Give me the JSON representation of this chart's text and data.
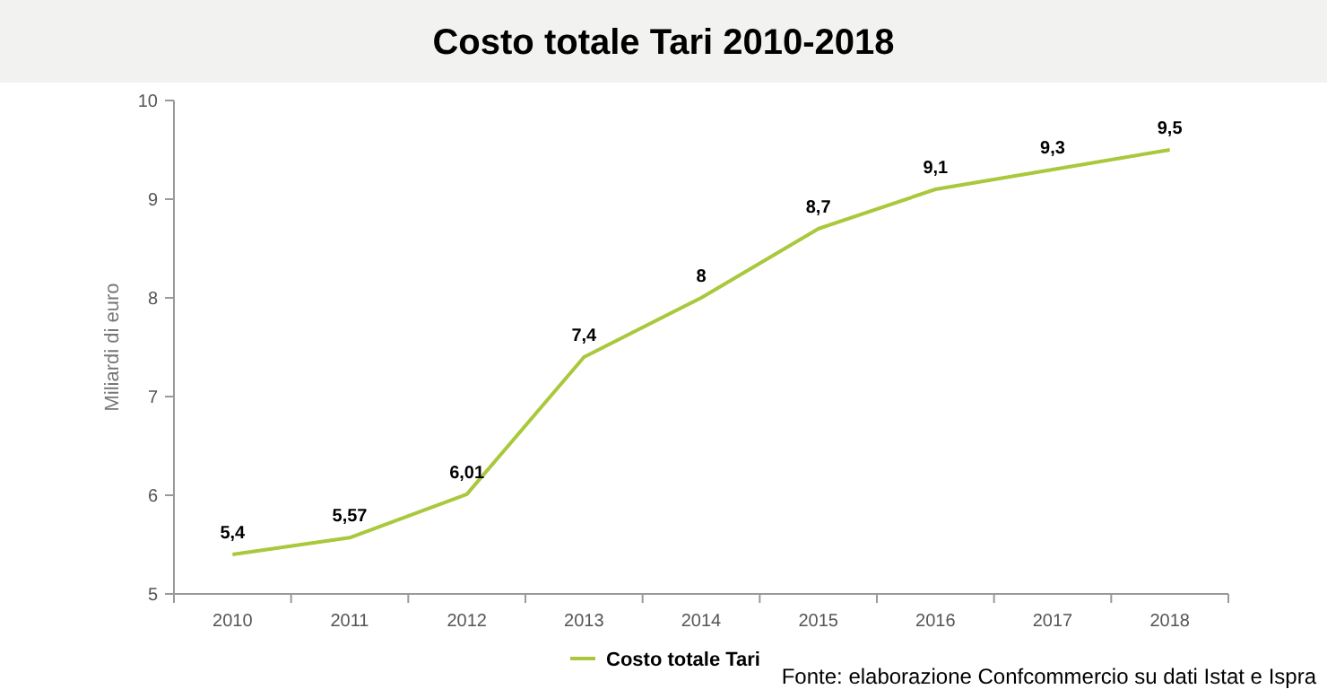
{
  "chart_data": {
    "type": "line",
    "title": "Costo totale Tari 2010-2018",
    "ylabel": "Miliardi di euro",
    "categories": [
      "2010",
      "2011",
      "2012",
      "2013",
      "2014",
      "2015",
      "2016",
      "2017",
      "2018"
    ],
    "series": [
      {
        "name": "Costo totale Tari",
        "color": "#a9c83c",
        "values": [
          5.4,
          5.57,
          6.01,
          7.4,
          8,
          8.7,
          9.1,
          9.3,
          9.5
        ],
        "value_labels": [
          "5,4",
          "5,57",
          "6,01",
          "7,4",
          "8",
          "8,7",
          "9,1",
          "9,3",
          "9,5"
        ]
      }
    ],
    "ylim": [
      5,
      10
    ],
    "yticks": [
      5,
      6,
      7,
      8,
      9,
      10
    ],
    "grid": false,
    "legend": "bottom",
    "marker": "none",
    "line_style": "solid",
    "annotations": [
      "Fonte: elaborazione Confcommercio su dati Istat e Ispra"
    ]
  }
}
